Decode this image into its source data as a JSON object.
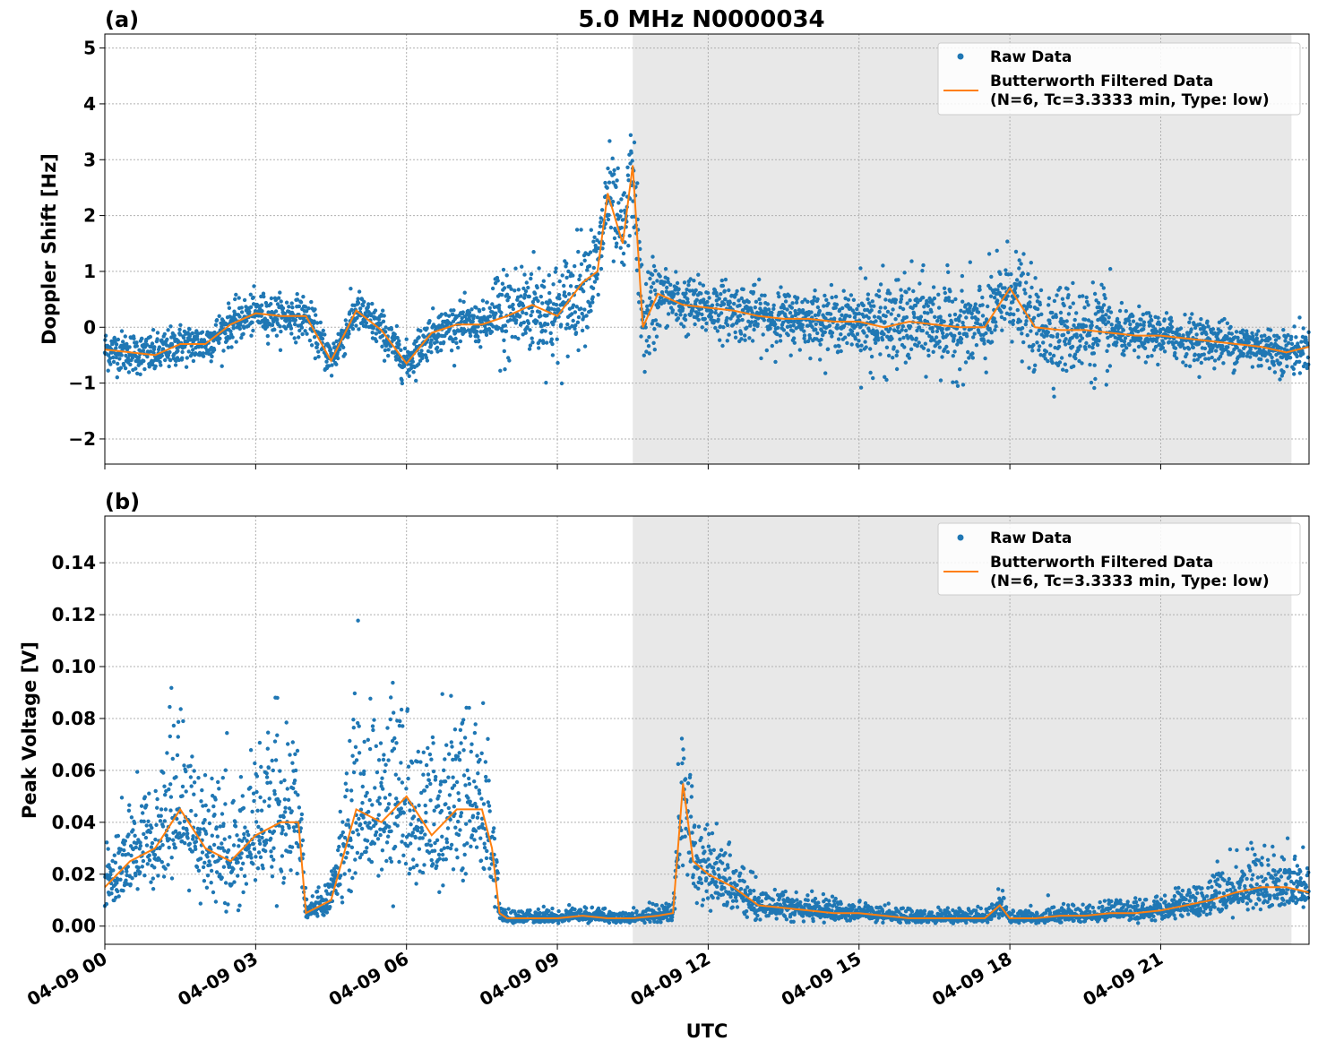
{
  "figure": {
    "title": "5.0 MHz N0000034",
    "xlabel": "UTC",
    "x_ticks": [
      "04-09 00",
      "04-09 03",
      "04-09 06",
      "04-09 09",
      "04-09 12",
      "04-09 15",
      "04-09 18",
      "04-09 21"
    ],
    "x_tick_hours": [
      0,
      3,
      6,
      9,
      12,
      15,
      18,
      21
    ],
    "x_range_hours": [
      0,
      23.95
    ],
    "shaded_region_hours": [
      10.5,
      23.6
    ],
    "colors": {
      "raw": "#1f77b4",
      "filtered": "#ff7f0e",
      "shade": "#e8e8e8",
      "grid": "#b0b0b0"
    }
  },
  "legend": {
    "raw_label": "Raw Data",
    "filtered_label_line1": "Butterworth Filtered Data",
    "filtered_label_line2": "(N=6, Tc=3.3333 min, Type: low)",
    "placement": "top-right"
  },
  "chart_data": [
    {
      "type": "scatter",
      "panel_label": "(a)",
      "ylabel": "Doppler Shift [Hz]",
      "ylim": [
        -2.45,
        5.25
      ],
      "y_ticks": [
        5,
        4,
        3,
        2,
        1,
        0,
        -1,
        -2
      ],
      "y_tick_labels": [
        "5",
        "4",
        "3",
        "2",
        "1",
        "0",
        "−1",
        "−2"
      ],
      "grid": true,
      "series": [
        {
          "name": "Raw Data",
          "kind": "points"
        },
        {
          "name": "Butterworth Filtered Data",
          "kind": "line",
          "x": [
            0,
            0.5,
            1,
            1.5,
            2,
            2.5,
            3,
            3.5,
            4,
            4.5,
            5,
            5.5,
            6,
            6.5,
            7,
            7.5,
            8,
            8.5,
            9,
            9.5,
            9.8,
            10,
            10.3,
            10.5,
            10.7,
            11,
            11.5,
            12,
            12.5,
            13,
            13.5,
            14,
            14.5,
            15,
            15.5,
            16,
            16.5,
            17,
            17.5,
            18,
            18.5,
            19,
            19.5,
            20,
            20.5,
            21,
            21.5,
            22,
            22.5,
            23,
            23.5,
            23.95
          ],
          "y": [
            -0.4,
            -0.45,
            -0.5,
            -0.3,
            -0.3,
            0.05,
            0.25,
            0.2,
            0.2,
            -0.6,
            0.3,
            -0.05,
            -0.65,
            -0.1,
            0.05,
            0.05,
            0.2,
            0.4,
            0.2,
            0.8,
            1.0,
            2.4,
            1.5,
            2.9,
            0.0,
            0.6,
            0.4,
            0.35,
            0.3,
            0.2,
            0.15,
            0.15,
            0.1,
            0.1,
            0.0,
            0.1,
            0.05,
            0.0,
            0.0,
            0.7,
            0.0,
            -0.05,
            -0.05,
            -0.1,
            -0.15,
            -0.15,
            -0.2,
            -0.25,
            -0.3,
            -0.35,
            -0.45,
            -0.35
          ]
        }
      ]
    },
    {
      "type": "scatter",
      "panel_label": "(b)",
      "ylabel": "Peak Voltage [V]",
      "ylim": [
        -0.007,
        0.158
      ],
      "y_ticks": [
        0.14,
        0.12,
        0.1,
        0.08,
        0.06,
        0.04,
        0.02,
        0.0
      ],
      "y_tick_labels": [
        "0.14",
        "0.12",
        "0.10",
        "0.08",
        "0.06",
        "0.04",
        "0.02",
        "0.00"
      ],
      "grid": true,
      "series": [
        {
          "name": "Raw Data",
          "kind": "points"
        },
        {
          "name": "Butterworth Filtered Data",
          "kind": "line",
          "x": [
            0,
            0.5,
            1,
            1.5,
            2,
            2.5,
            3,
            3.5,
            3.85,
            4,
            4.5,
            5,
            5.5,
            6,
            6.5,
            7,
            7.5,
            7.7,
            7.85,
            8,
            8.5,
            9,
            9.5,
            10,
            10.5,
            11,
            11.3,
            11.5,
            11.7,
            12,
            12.5,
            13,
            13.5,
            14,
            14.5,
            15,
            15.5,
            16,
            16.5,
            17,
            17.5,
            17.8,
            18,
            18.5,
            19,
            19.5,
            20,
            20.5,
            21,
            21.5,
            22,
            22.5,
            23,
            23.5,
            23.95
          ],
          "y": [
            0.015,
            0.025,
            0.03,
            0.045,
            0.03,
            0.025,
            0.035,
            0.04,
            0.04,
            0.005,
            0.01,
            0.045,
            0.04,
            0.05,
            0.035,
            0.045,
            0.045,
            0.03,
            0.005,
            0.003,
            0.003,
            0.003,
            0.004,
            0.003,
            0.003,
            0.004,
            0.005,
            0.055,
            0.025,
            0.02,
            0.015,
            0.008,
            0.007,
            0.006,
            0.005,
            0.005,
            0.004,
            0.003,
            0.003,
            0.003,
            0.003,
            0.008,
            0.003,
            0.003,
            0.004,
            0.004,
            0.005,
            0.005,
            0.006,
            0.008,
            0.01,
            0.013,
            0.015,
            0.015,
            0.013
          ]
        }
      ]
    }
  ]
}
